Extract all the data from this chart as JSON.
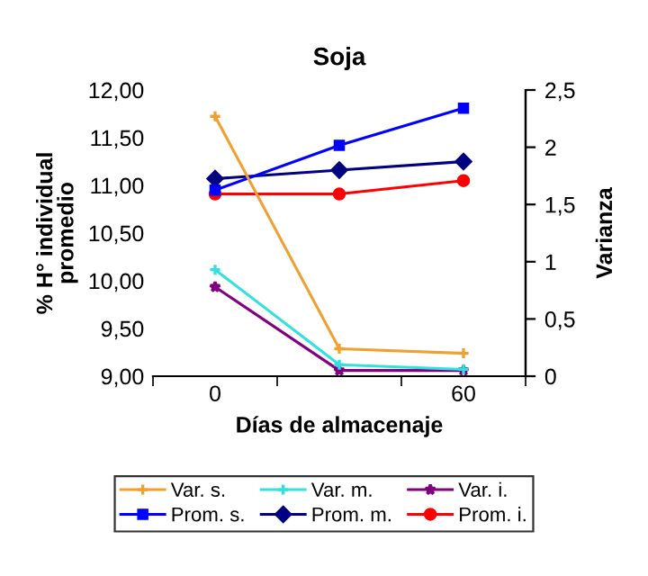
{
  "chart_data": {
    "type": "line",
    "title": "Soja",
    "xlabel": "Días de almacenaje",
    "ylabel": "% H° individual\npromedio",
    "y2label": "Varianza",
    "categories": [
      "0",
      null,
      "60"
    ],
    "series": [
      {
        "name": "Var. s.",
        "color": "#f0a030",
        "axis": "y2",
        "marker": "cross",
        "values": [
          2.27,
          0.24,
          0.2
        ]
      },
      {
        "name": "Var. m.",
        "color": "#33e0e0",
        "axis": "y2",
        "marker": "cross",
        "values": [
          0.93,
          0.1,
          0.06
        ]
      },
      {
        "name": "Var. i.",
        "color": "#800080",
        "axis": "y2",
        "marker": "star",
        "values": [
          0.78,
          0.05,
          0.05
        ]
      },
      {
        "name": "Prom. s.",
        "color": "#0000ff",
        "marker": "square",
        "values": [
          10.95,
          11.42,
          11.81
        ]
      },
      {
        "name": "Prom. m.",
        "color": "#000080",
        "marker": "diamond",
        "values": [
          11.07,
          11.16,
          11.25
        ]
      },
      {
        "name": "Prom. i.",
        "color": "#ff0000",
        "marker": "circle",
        "values": [
          10.91,
          10.91,
          11.05
        ]
      }
    ],
    "ylim": [
      9,
      12
    ],
    "yticks": [
      {
        "value": 9,
        "label": "9,00"
      },
      {
        "value": 9.5,
        "label": "9,50"
      },
      {
        "value": 10,
        "label": "10,00"
      },
      {
        "value": 10.5,
        "label": "10,50"
      },
      {
        "value": 11,
        "label": "11,00"
      },
      {
        "value": 11.5,
        "label": "11,50"
      },
      {
        "value": 12,
        "label": "12,00"
      }
    ],
    "y2lim": [
      0,
      2.5
    ],
    "y2ticks": [
      0,
      {
        "value": 0.5,
        "label": "0,5"
      },
      1,
      {
        "value": 1.5,
        "label": "1,5"
      },
      2,
      {
        "value": 2.5,
        "label": "2,5"
      }
    ],
    "grid": false,
    "legend": "bottom",
    "line_style": "solid"
  }
}
